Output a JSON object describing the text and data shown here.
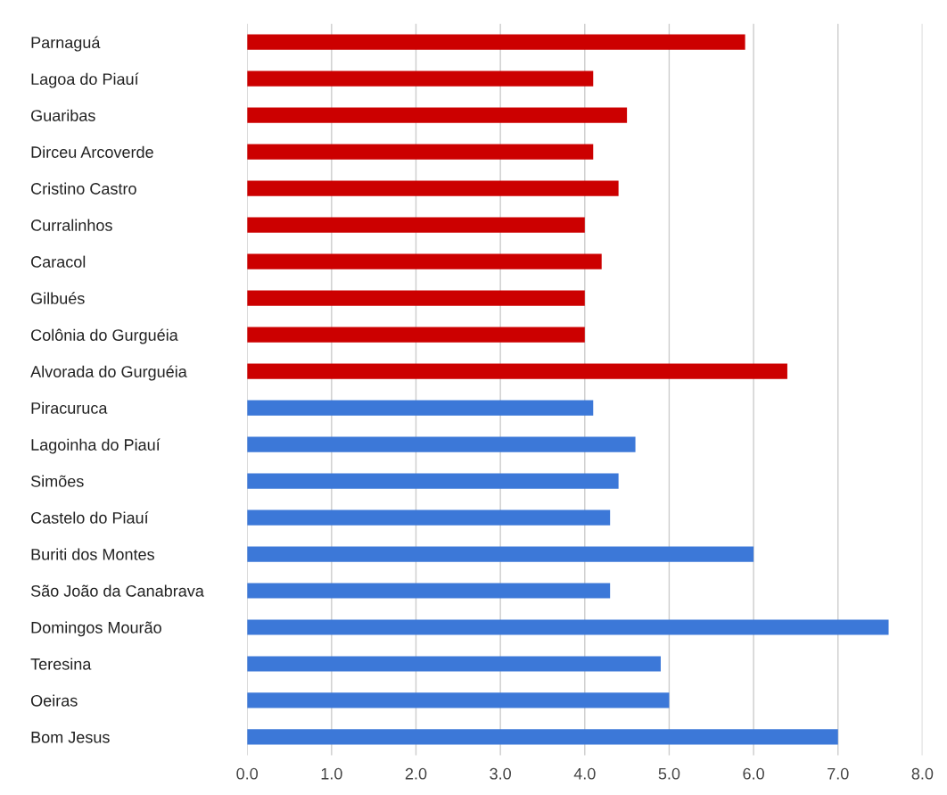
{
  "chart_data": {
    "type": "bar",
    "orientation": "horizontal",
    "categories": [
      "Parnaguá",
      "Lagoa do Piauí",
      "Guaribas",
      "Dirceu Arcoverde",
      "Cristino Castro",
      "Curralinhos",
      "Caracol",
      "Gilbués",
      "Colônia do Gurguéia",
      "Alvorada do Gurguéia",
      "Piracuruca",
      "Lagoinha do Piauí",
      "Simões",
      "Castelo do Piauí",
      "Buriti dos Montes",
      "São João da Canabrava",
      "Domingos Mourão",
      "Teresina",
      "Oeiras",
      "Bom Jesus"
    ],
    "values": [
      5.9,
      4.1,
      4.5,
      4.1,
      4.4,
      4.0,
      4.2,
      4.0,
      4.0,
      6.4,
      4.1,
      4.6,
      4.4,
      4.3,
      6.0,
      4.3,
      7.6,
      4.9,
      5.0,
      7.0
    ],
    "colors": [
      "#cc0000",
      "#cc0000",
      "#cc0000",
      "#cc0000",
      "#cc0000",
      "#cc0000",
      "#cc0000",
      "#cc0000",
      "#cc0000",
      "#cc0000",
      "#3c78d8",
      "#3c78d8",
      "#3c78d8",
      "#3c78d8",
      "#3c78d8",
      "#3c78d8",
      "#3c78d8",
      "#3c78d8",
      "#3c78d8",
      "#3c78d8"
    ],
    "xlim": [
      0.0,
      8.0
    ],
    "xticks": [
      {
        "value": 0,
        "label": "0.0"
      },
      {
        "value": 1,
        "label": "1.0"
      },
      {
        "value": 2,
        "label": "2.0"
      },
      {
        "value": 3,
        "label": "3.0"
      },
      {
        "value": 4,
        "label": "4.0"
      },
      {
        "value": 5,
        "label": "5.0"
      },
      {
        "value": 6,
        "label": "6.0"
      },
      {
        "value": 7,
        "label": "7.0"
      },
      {
        "value": 8,
        "label": "8.0"
      }
    ],
    "grid": "x"
  }
}
